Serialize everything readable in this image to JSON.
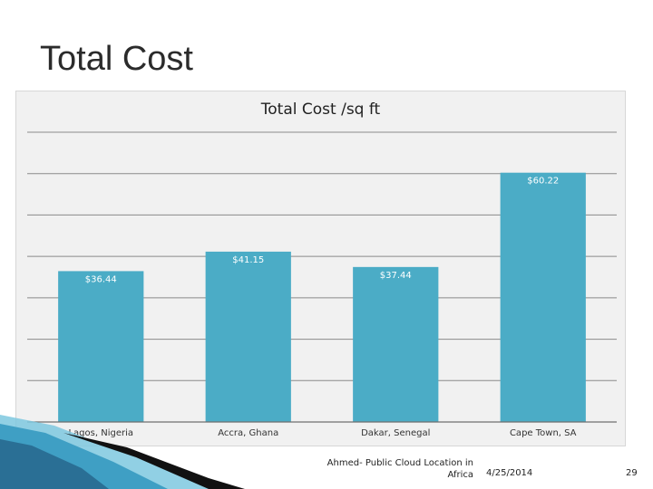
{
  "slide": {
    "title": "Total Cost",
    "footer_source": "Ahmed- Public Cloud Location in Africa",
    "footer_date": "4/25/2014",
    "page_number": "29"
  },
  "colors": {
    "bar": "#4bacc6",
    "gridline": "#8a8a8a",
    "panel": "#f1f1f1",
    "accent_dark": "#1c2f4a"
  },
  "chart_data": {
    "type": "bar",
    "title": "Total Cost /sq ft",
    "categories": [
      "Lagos, Nigeria",
      "Accra, Ghana",
      "Dakar, Senegal",
      "Cape Town, SA"
    ],
    "values": [
      36.44,
      41.15,
      37.44,
      60.22
    ],
    "data_labels": [
      "$36.44",
      "$41.15",
      "$37.44",
      "$60.22"
    ],
    "ylim": [
      0,
      70
    ],
    "grid": true,
    "legend": "none"
  }
}
